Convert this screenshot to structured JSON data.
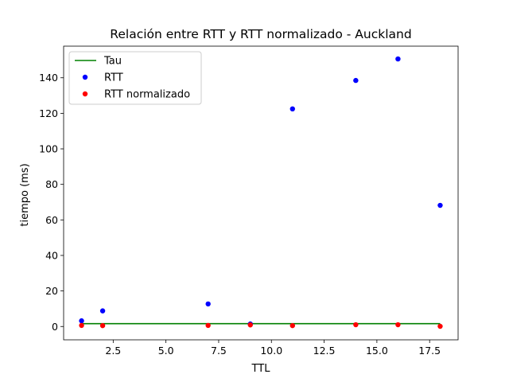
{
  "chart_data": {
    "type": "scatter",
    "title": "Relación entre RTT y RTT normalizado - Auckland",
    "xlabel": "TTL",
    "ylabel": "tiempo (ms)",
    "xlim": [
      0.15,
      18.85
    ],
    "ylim": [
      -7.5,
      157.8
    ],
    "xticks": [
      2.5,
      5.0,
      7.5,
      10.0,
      12.5,
      15.0,
      17.5
    ],
    "xtick_labels": [
      "2.5",
      "5.0",
      "7.5",
      "10.0",
      "12.5",
      "15.0",
      "17.5"
    ],
    "yticks": [
      0,
      20,
      40,
      60,
      80,
      100,
      120,
      140
    ],
    "ytick_labels": [
      "0",
      "20",
      "40",
      "60",
      "80",
      "100",
      "120",
      "140"
    ],
    "grid": false,
    "legend_position": "upper-left",
    "series": [
      {
        "name": "Tau",
        "kind": "line",
        "color": "#008000",
        "x": [
          1,
          18
        ],
        "y": [
          1.6,
          1.6
        ]
      },
      {
        "name": "RTT",
        "kind": "scatter",
        "color": "#0000ff",
        "x": [
          1,
          2,
          7,
          9,
          11,
          14,
          16,
          18
        ],
        "y": [
          3.2,
          8.8,
          12.7,
          1.4,
          122.5,
          138.5,
          150.6,
          68.2
        ]
      },
      {
        "name": "RTT normalizado",
        "kind": "scatter",
        "color": "#ff0000",
        "x": [
          1,
          2,
          7,
          9,
          11,
          14,
          16,
          18
        ],
        "y": [
          0.6,
          0.5,
          0.6,
          0.9,
          0.5,
          1.0,
          1.0,
          0.1
        ]
      }
    ]
  }
}
